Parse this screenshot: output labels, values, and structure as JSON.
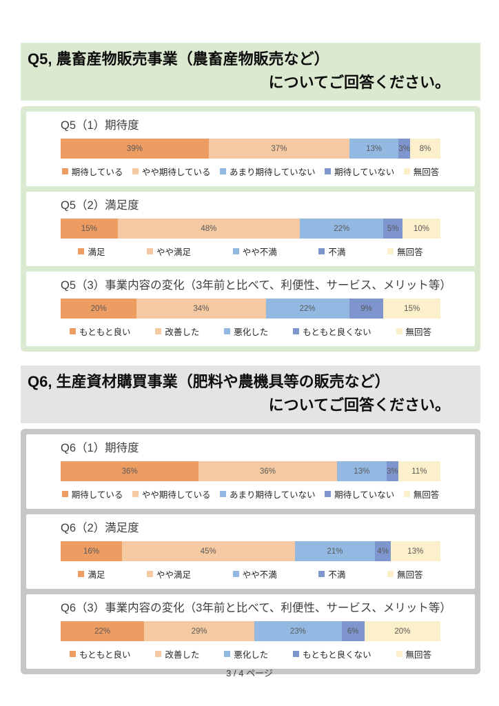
{
  "page": {
    "footer": "3 / 4 ページ"
  },
  "palette": {
    "series_colors": [
      "#ED9C62",
      "#F5C9A2",
      "#93B8E2",
      "#7E95CE",
      "#FBF0CA"
    ],
    "q5_header_bg": "#DBE9D1",
    "q5_frame": "#DBE9D1",
    "q6_header_bg": "#E4E4E4",
    "q6_frame": "#C7C7C7",
    "bar_value_text": "#595959"
  },
  "sections": [
    {
      "id": "q5",
      "header": {
        "line1": "Q5, 農畜産物販売事業（農畜産物販売など）",
        "line2": "についてご回答ください。"
      },
      "header_bg": "#DBE9D1",
      "frame_color": "#DBE9D1",
      "chart_indices": [
        0,
        1,
        2
      ]
    },
    {
      "id": "q6",
      "header": {
        "line1": "Q6, 生産資材購買事業（肥料や農機具等の販売など）",
        "line2": "についてご回答ください。"
      },
      "header_bg": "#E4E4E4",
      "frame_color": "#C7C7C7",
      "chart_indices": [
        3,
        4,
        5
      ]
    }
  ],
  "chart_data": [
    {
      "id": "q5-1",
      "type": "bar",
      "subtype": "horizontal-stacked-100pct",
      "title": "Q5（1）期待度",
      "unit": "%",
      "legend_position": "bottom",
      "categories": [
        "期待している",
        "やや期待している",
        "あまり期待していない",
        "期待していない",
        "無回答"
      ],
      "values": [
        39,
        37,
        13,
        3,
        8
      ]
    },
    {
      "id": "q5-2",
      "type": "bar",
      "subtype": "horizontal-stacked-100pct",
      "title": "Q5（2）満足度",
      "unit": "%",
      "legend_position": "bottom",
      "categories": [
        "満足",
        "やや満足",
        "やや不満",
        "不満",
        "無回答"
      ],
      "values": [
        15,
        48,
        22,
        5,
        10
      ]
    },
    {
      "id": "q5-3",
      "type": "bar",
      "subtype": "horizontal-stacked-100pct",
      "title": "Q5（3）事業内容の変化（3年前と比べて、利便性、サービス、メリット等）",
      "unit": "%",
      "legend_position": "bottom",
      "categories": [
        "もともと良い",
        "改善した",
        "悪化した",
        "もともと良くない",
        "無回答"
      ],
      "values": [
        20,
        34,
        22,
        9,
        15
      ]
    },
    {
      "id": "q6-1",
      "type": "bar",
      "subtype": "horizontal-stacked-100pct",
      "title": "Q6（1）期待度",
      "unit": "%",
      "legend_position": "bottom",
      "categories": [
        "期待している",
        "やや期待している",
        "あまり期待していない",
        "期待していない",
        "無回答"
      ],
      "values": [
        36,
        36,
        13,
        3,
        11
      ]
    },
    {
      "id": "q6-2",
      "type": "bar",
      "subtype": "horizontal-stacked-100pct",
      "title": "Q6（2）満足度",
      "unit": "%",
      "legend_position": "bottom",
      "categories": [
        "満足",
        "やや満足",
        "やや不満",
        "不満",
        "無回答"
      ],
      "values": [
        16,
        45,
        21,
        4,
        13
      ]
    },
    {
      "id": "q6-3",
      "type": "bar",
      "subtype": "horizontal-stacked-100pct",
      "title": "Q6（3）事業内容の変化（3年前と比べて、利便性、サービス、メリット等）",
      "unit": "%",
      "legend_position": "bottom",
      "categories": [
        "もともと良い",
        "改善した",
        "悪化した",
        "もともと良くない",
        "無回答"
      ],
      "values": [
        22,
        29,
        23,
        6,
        20
      ]
    }
  ]
}
